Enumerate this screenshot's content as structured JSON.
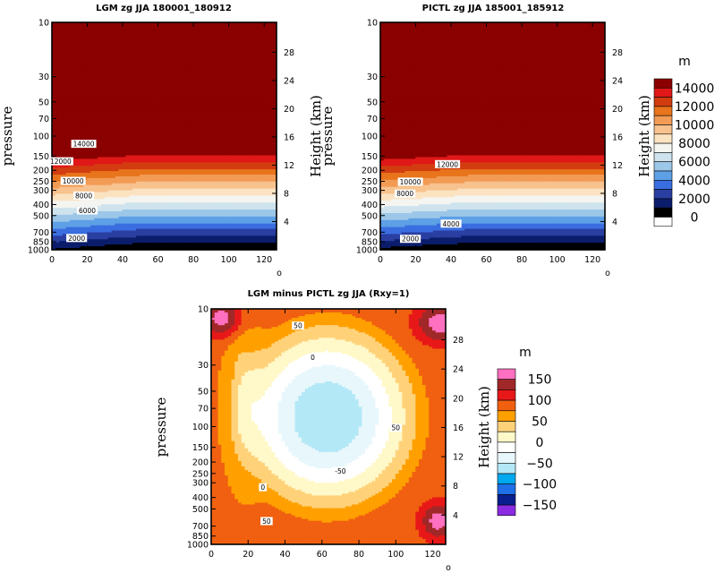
{
  "chart_data": [
    {
      "type": "contour",
      "title": "LGM zg JJA 180001_180912",
      "xlabel": "",
      "ylabel": "pressure",
      "right_axis_label": "Height (km)",
      "xlim": [
        0,
        127
      ],
      "x_ticks": [
        0,
        20,
        40,
        60,
        80,
        100,
        120
      ],
      "x_end_label": "o",
      "y_ticks": [
        10,
        30,
        50,
        70,
        100,
        150,
        200,
        250,
        300,
        400,
        500,
        700,
        850,
        1000
      ],
      "height_ticks": [
        4,
        8,
        12,
        16,
        20,
        24,
        28
      ],
      "contour_labels": [
        {
          "text": "14000",
          "x": 18,
          "p": 118
        },
        {
          "text": "12000",
          "x": 5,
          "p": 168
        },
        {
          "text": "10000",
          "x": 12,
          "p": 250
        },
        {
          "text": "8000",
          "x": 18,
          "p": 336
        },
        {
          "text": "6000",
          "x": 20,
          "p": 455
        },
        {
          "text": "2000",
          "x": 14,
          "p": 795
        }
      ],
      "shared_colorbar": true
    },
    {
      "type": "contour",
      "title": "PICTL zg JJA 185001_185912",
      "xlabel": "",
      "ylabel": "pressure",
      "right_axis_label": "Height (km)",
      "xlim": [
        0,
        127
      ],
      "x_ticks": [
        0,
        20,
        40,
        60,
        80,
        100,
        120
      ],
      "x_end_label": "o",
      "y_ticks": [
        10,
        30,
        50,
        70,
        100,
        150,
        200,
        250,
        300,
        400,
        500,
        700,
        850,
        1000
      ],
      "height_ticks": [
        4,
        8,
        12,
        16,
        20,
        24,
        28
      ],
      "contour_labels": [
        {
          "text": "12000",
          "x": 38,
          "p": 178
        },
        {
          "text": "10000",
          "x": 17,
          "p": 254
        },
        {
          "text": "8000",
          "x": 14,
          "p": 323
        },
        {
          "text": "4000",
          "x": 40,
          "p": 594
        },
        {
          "text": "2000",
          "x": 17,
          "p": 808
        }
      ],
      "colorbar": {
        "unit": "m",
        "levels": [
          0,
          2000,
          4000,
          6000,
          8000,
          10000,
          12000,
          14000
        ],
        "labels": [
          "0",
          "2000",
          "4000",
          "6000",
          "8000",
          "10000",
          "12000",
          "14000"
        ],
        "colors": [
          "#ffffff",
          "#000000",
          "#0b1d6b",
          "#2a3fa1",
          "#3a6ee0",
          "#5ea0e6",
          "#9cc7e8",
          "#cfe3ee",
          "#f4f4f0",
          "#fbe3c2",
          "#f7c28e",
          "#f29b55",
          "#e8741c",
          "#d23d10",
          "#e01818",
          "#8b0000"
        ]
      }
    },
    {
      "type": "contour",
      "title": "LGM minus PICTL zg JJA (Rxy=1)",
      "xlabel": "",
      "ylabel": "pressure",
      "right_axis_label": "Height (km)",
      "xlim": [
        0,
        127
      ],
      "x_ticks": [
        0,
        20,
        40,
        60,
        80,
        100,
        120
      ],
      "x_end_label": "o",
      "y_ticks": [
        10,
        30,
        50,
        70,
        100,
        150,
        200,
        250,
        300,
        400,
        500,
        700,
        850,
        1000
      ],
      "height_ticks": [
        4,
        8,
        12,
        16,
        20,
        24,
        28
      ],
      "contour_labels": [
        {
          "text": "50",
          "x": 47,
          "p": 14
        },
        {
          "text": "0",
          "x": 55,
          "p": 26
        },
        {
          "text": "50",
          "x": 100,
          "p": 103
        },
        {
          "text": "-50",
          "x": 70,
          "p": 240
        },
        {
          "text": "0",
          "x": 28,
          "p": 330
        },
        {
          "text": "50",
          "x": 30,
          "p": 640
        }
      ],
      "colorbar": {
        "unit": "m",
        "levels": [
          -150,
          -100,
          -50,
          0,
          50,
          100,
          150
        ],
        "labels": [
          "−150",
          "−100",
          "−50",
          "0",
          "50",
          "100",
          "150"
        ],
        "colors": [
          "#8a2be2",
          "#0a1f8f",
          "#1e6fe8",
          "#00a8f0",
          "#b3e8f7",
          "#e8f7fb",
          "#ffffff",
          "#fff8c8",
          "#ffd27a",
          "#ffa000",
          "#f06010",
          "#e81818",
          "#a02828",
          "#ff70c0"
        ]
      }
    }
  ]
}
